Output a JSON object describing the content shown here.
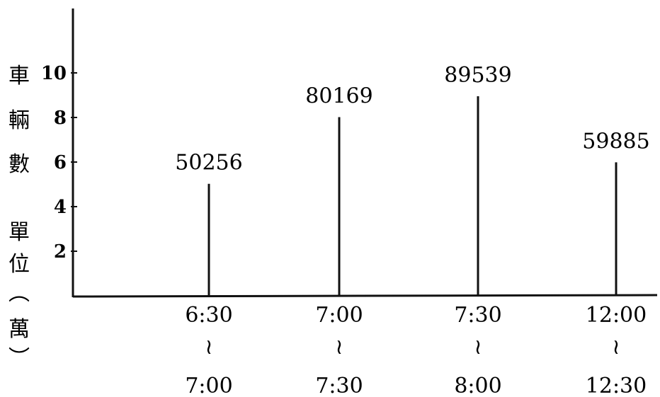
{
  "chart_data": {
    "type": "bar",
    "ylabel": "車輛數單位(萬)",
    "ylabel_lines": [
      "車",
      "輛",
      "數",
      "",
      "單",
      "位",
      "︵",
      "萬",
      "︶"
    ],
    "yticks": [
      "2",
      "4",
      "6",
      "8",
      "10"
    ],
    "ytick_values": [
      2,
      4,
      6,
      8,
      10
    ],
    "ylim": [
      0,
      10.5
    ],
    "categories": [
      {
        "start": "6:30",
        "sep": "≀",
        "end": "7:00"
      },
      {
        "start": "7:00",
        "sep": "≀",
        "end": "7:30"
      },
      {
        "start": "7:30",
        "sep": "≀",
        "end": "8:00"
      },
      {
        "start": "12:00",
        "sep": "≀",
        "end": "12:30"
      }
    ],
    "values": [
      50256,
      80169,
      89539,
      59885
    ],
    "value_labels": [
      "50256",
      "80169",
      "89539",
      "59885"
    ],
    "unit_divisor": 10000
  }
}
